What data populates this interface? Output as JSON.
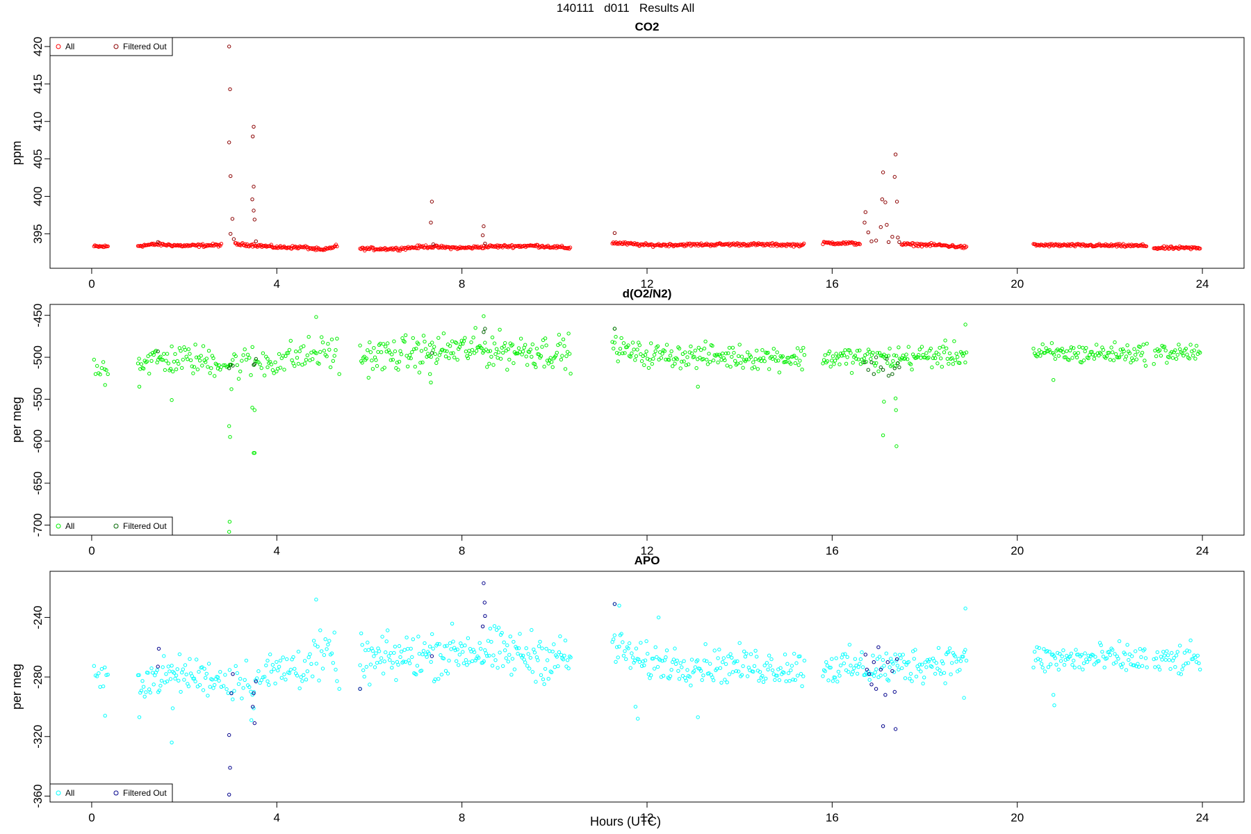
{
  "page_title": "140111   d011   Results All",
  "x_axis_label": "Hours (UTC)",
  "legend_labels": {
    "all": "All",
    "filtered": "Filtered Out"
  },
  "colors": {
    "co2_all": "#ff0000",
    "co2_filtered": "#8b0000",
    "o2n2_all": "#00ee00",
    "o2n2_filtered": "#006400",
    "apo_all": "#00ffff",
    "apo_filtered": "#00008b"
  },
  "chart_data": [
    {
      "type": "scatter",
      "title": "CO2",
      "xlabel": "Hours (UTC)",
      "ylabel": "ppm",
      "xlim": [
        -0.9,
        24.9
      ],
      "ylim": [
        390.4,
        421.2
      ],
      "x_ticks": [
        0,
        4,
        8,
        12,
        16,
        20,
        24
      ],
      "y_ticks": [
        395,
        400,
        405,
        410,
        415,
        420
      ],
      "legend": [
        "All",
        "Filtered Out"
      ],
      "legend_position": "top-left",
      "grid": false,
      "baseline_segments": [
        [
          [
            0.05,
            393.3
          ],
          [
            0.35,
            393.3
          ]
        ],
        [
          [
            1.0,
            393.4
          ],
          [
            1.4,
            393.6
          ],
          [
            2.0,
            393.4
          ],
          [
            2.8,
            393.5
          ]
        ],
        [
          [
            3.1,
            393.6
          ],
          [
            3.5,
            393.5
          ],
          [
            4.0,
            393.2
          ],
          [
            4.6,
            393.2
          ],
          [
            5.0,
            392.8
          ],
          [
            5.3,
            393.4
          ]
        ],
        [
          [
            5.8,
            393.0
          ],
          [
            6.6,
            393.0
          ],
          [
            7.2,
            393.3
          ],
          [
            8.0,
            393.1
          ],
          [
            8.6,
            393.3
          ],
          [
            9.6,
            393.4
          ],
          [
            10.35,
            393.1
          ]
        ],
        [
          [
            11.25,
            393.8
          ],
          [
            12.0,
            393.5
          ],
          [
            14.0,
            393.6
          ],
          [
            15.4,
            393.5
          ]
        ],
        [
          [
            15.8,
            393.8
          ],
          [
            16.6,
            393.7
          ]
        ],
        [
          [
            17.5,
            393.6
          ],
          [
            18.3,
            393.5
          ],
          [
            18.9,
            393.2
          ]
        ],
        [
          [
            20.35,
            393.5
          ],
          [
            22.8,
            393.4
          ]
        ],
        [
          [
            22.95,
            393.1
          ],
          [
            23.95,
            393.1
          ]
        ]
      ],
      "filtered_points": [
        [
          1.43,
          393.9
        ],
        [
          2.97,
          420.0
        ],
        [
          2.99,
          414.3
        ],
        [
          2.97,
          407.2
        ],
        [
          3.0,
          402.7
        ],
        [
          3.04,
          397.0
        ],
        [
          3.0,
          395.0
        ],
        [
          3.07,
          394.3
        ],
        [
          3.5,
          409.3
        ],
        [
          3.48,
          408.0
        ],
        [
          3.5,
          401.3
        ],
        [
          3.47,
          399.6
        ],
        [
          3.5,
          398.1
        ],
        [
          3.52,
          396.9
        ],
        [
          3.55,
          394.0
        ],
        [
          7.35,
          399.3
        ],
        [
          7.33,
          396.5
        ],
        [
          7.38,
          393.6
        ],
        [
          8.47,
          396.0
        ],
        [
          8.45,
          394.8
        ],
        [
          8.5,
          393.7
        ],
        [
          11.3,
          395.1
        ],
        [
          16.7,
          396.5
        ],
        [
          16.72,
          397.9
        ],
        [
          16.78,
          395.2
        ],
        [
          16.85,
          394.0
        ],
        [
          16.95,
          394.1
        ],
        [
          17.08,
          399.6
        ],
        [
          17.1,
          403.2
        ],
        [
          17.15,
          399.2
        ],
        [
          17.18,
          396.2
        ],
        [
          17.05,
          395.9
        ],
        [
          17.22,
          393.9
        ],
        [
          17.3,
          394.6
        ],
        [
          17.35,
          402.6
        ],
        [
          17.37,
          405.6
        ],
        [
          17.4,
          399.3
        ],
        [
          17.42,
          394.5
        ],
        [
          17.45,
          393.9
        ]
      ]
    },
    {
      "type": "scatter",
      "title": "d(O2/N2)",
      "xlabel": "Hours (UTC)",
      "ylabel": "per meg",
      "xlim": [
        -0.9,
        24.9
      ],
      "ylim": [
        -712,
        -437
      ],
      "x_ticks": [
        0,
        4,
        8,
        12,
        16,
        20,
        24
      ],
      "y_ticks": [
        -700,
        -650,
        -600,
        -550,
        -500,
        -450
      ],
      "legend": [
        "All",
        "Filtered Out"
      ],
      "legend_position": "bottom-left",
      "grid": false,
      "segments": [
        {
          "x0": 0.05,
          "x1": 0.35,
          "n": 10,
          "mean": [
            [
              0,
              -511
            ],
            [
              1,
              -511
            ]
          ],
          "spread": 6
        },
        {
          "x0": 1.0,
          "x1": 2.8,
          "n": 75,
          "mean": [
            [
              0,
              -505
            ],
            [
              0.5,
              -502
            ],
            [
              1,
              -505
            ]
          ],
          "spread": 9
        },
        {
          "x0": 2.85,
          "x1": 3.8,
          "n": 30,
          "mean": [
            [
              0,
              -508
            ],
            [
              1,
              -505
            ]
          ],
          "spread": 10
        },
        {
          "x0": 3.8,
          "x1": 5.3,
          "n": 55,
          "mean": [
            [
              0,
              -505
            ],
            [
              0.6,
              -497
            ],
            [
              1,
              -492
            ]
          ],
          "spread": 10
        },
        {
          "x0": 5.8,
          "x1": 10.35,
          "n": 200,
          "mean": [
            [
              0,
              -500
            ],
            [
              0.5,
              -490
            ],
            [
              1,
              -494
            ]
          ],
          "spread": 10
        },
        {
          "x0": 11.25,
          "x1": 15.4,
          "n": 170,
          "mean": [
            [
              0,
              -488
            ],
            [
              0.15,
              -497
            ],
            [
              1,
              -501
            ]
          ],
          "spread": 7
        },
        {
          "x0": 15.8,
          "x1": 18.9,
          "n": 130,
          "mean": [
            [
              0,
              -500
            ],
            [
              0.4,
              -502
            ],
            [
              1,
              -496
            ]
          ],
          "spread": 7
        },
        {
          "x0": 20.35,
          "x1": 22.8,
          "n": 100,
          "mean": [
            [
              0,
              -496
            ],
            [
              1,
              -495
            ]
          ],
          "spread": 6
        },
        {
          "x0": 22.95,
          "x1": 23.95,
          "n": 40,
          "mean": [
            [
              0,
              -495
            ],
            [
              1,
              -494
            ]
          ],
          "spread": 6
        }
      ],
      "outliers": [
        [
          0.29,
          -533
        ],
        [
          1.03,
          -535
        ],
        [
          1.73,
          -551
        ],
        [
          2.97,
          -582
        ],
        [
          2.99,
          -595
        ],
        [
          2.98,
          -696
        ],
        [
          2.97,
          -708
        ],
        [
          3.02,
          -538
        ],
        [
          3.47,
          -560
        ],
        [
          3.52,
          -563
        ],
        [
          3.5,
          -614
        ],
        [
          3.52,
          -614
        ],
        [
          4.85,
          -452
        ],
        [
          5.35,
          -520
        ],
        [
          7.33,
          -530
        ],
        [
          7.31,
          -520
        ],
        [
          8.47,
          -451
        ],
        [
          11.3,
          -466
        ],
        [
          13.1,
          -535
        ],
        [
          17.12,
          -553
        ],
        [
          17.1,
          -593
        ],
        [
          17.37,
          -549
        ],
        [
          17.38,
          -563
        ],
        [
          17.39,
          -606
        ],
        [
          18.88,
          -461
        ],
        [
          20.78,
          -527
        ]
      ],
      "filtered_points": [
        [
          1.43,
          -493
        ],
        [
          2.97,
          -513
        ],
        [
          3.0,
          -509
        ],
        [
          3.05,
          -510
        ],
        [
          3.5,
          -509
        ],
        [
          3.52,
          -508
        ],
        [
          3.55,
          -502
        ],
        [
          7.35,
          -495
        ],
        [
          8.47,
          -470
        ],
        [
          8.5,
          -466
        ],
        [
          11.3,
          -466
        ],
        [
          16.7,
          -506
        ],
        [
          16.78,
          -515
        ],
        [
          16.85,
          -506
        ],
        [
          16.9,
          -520
        ],
        [
          16.95,
          -500
        ],
        [
          17.05,
          -512
        ],
        [
          17.1,
          -515
        ],
        [
          17.18,
          -502
        ],
        [
          17.22,
          -522
        ],
        [
          17.3,
          -520
        ],
        [
          17.35,
          -513
        ],
        [
          17.42,
          -507
        ],
        [
          17.45,
          -512
        ]
      ]
    },
    {
      "type": "scatter",
      "title": "APO",
      "xlabel": "Hours (UTC)",
      "ylabel": "per meg",
      "xlim": [
        -0.9,
        24.9
      ],
      "ylim": [
        -364,
        -209
      ],
      "x_ticks": [
        0,
        4,
        8,
        12,
        16,
        20,
        24
      ],
      "y_ticks": [
        -360,
        -320,
        -280,
        -240
      ],
      "legend": [
        "All",
        "Filtered Out"
      ],
      "legend_position": "bottom-left",
      "grid": false,
      "segments": [
        {
          "x0": 0.05,
          "x1": 0.35,
          "n": 10,
          "mean": [
            [
              0,
              -282
            ],
            [
              1,
              -282
            ]
          ],
          "spread": 5
        },
        {
          "x0": 1.0,
          "x1": 2.8,
          "n": 75,
          "mean": [
            [
              0,
              -282
            ],
            [
              0.5,
              -278
            ],
            [
              1,
              -281
            ]
          ],
          "spread": 6
        },
        {
          "x0": 2.85,
          "x1": 3.8,
          "n": 30,
          "mean": [
            [
              0,
              -282
            ],
            [
              1,
              -280
            ]
          ],
          "spread": 7
        },
        {
          "x0": 3.8,
          "x1": 5.3,
          "n": 55,
          "mean": [
            [
              0,
              -278
            ],
            [
              0.6,
              -270
            ],
            [
              1,
              -265
            ]
          ],
          "spread": 8
        },
        {
          "x0": 5.8,
          "x1": 10.35,
          "n": 200,
          "mean": [
            [
              0,
              -270
            ],
            [
              0.5,
              -262
            ],
            [
              1,
              -268
            ]
          ],
          "spread": 8
        },
        {
          "x0": 11.25,
          "x1": 15.4,
          "n": 170,
          "mean": [
            [
              0,
              -258
            ],
            [
              0.15,
              -270
            ],
            [
              1,
              -274
            ]
          ],
          "spread": 6
        },
        {
          "x0": 15.8,
          "x1": 18.9,
          "n": 130,
          "mean": [
            [
              0,
              -273
            ],
            [
              0.4,
              -274
            ],
            [
              1,
              -268
            ]
          ],
          "spread": 6
        },
        {
          "x0": 20.35,
          "x1": 22.8,
          "n": 100,
          "mean": [
            [
              0,
              -268
            ],
            [
              1,
              -268
            ]
          ],
          "spread": 5
        },
        {
          "x0": 22.95,
          "x1": 23.95,
          "n": 40,
          "mean": [
            [
              0,
              -270
            ],
            [
              1,
              -268
            ]
          ],
          "spread": 5
        }
      ],
      "outliers": [
        [
          0.29,
          -306
        ],
        [
          1.03,
          -307
        ],
        [
          1.73,
          -324
        ],
        [
          1.75,
          -301
        ],
        [
          3.5,
          -301
        ],
        [
          3.45,
          -309
        ],
        [
          4.85,
          -228
        ],
        [
          5.35,
          -288
        ],
        [
          5.8,
          -288
        ],
        [
          11.3,
          -231
        ],
        [
          11.4,
          -232
        ],
        [
          11.75,
          -300
        ],
        [
          11.8,
          -308
        ],
        [
          12.25,
          -240
        ],
        [
          13.1,
          -307
        ],
        [
          18.88,
          -234
        ],
        [
          18.85,
          -294
        ],
        [
          20.78,
          -292
        ],
        [
          20.8,
          -299
        ]
      ],
      "filtered_points": [
        [
          1.43,
          -273
        ],
        [
          1.45,
          -261
        ],
        [
          2.97,
          -319
        ],
        [
          2.99,
          -341
        ],
        [
          2.97,
          -359
        ],
        [
          3.02,
          -291
        ],
        [
          3.05,
          -278
        ],
        [
          3.48,
          -300
        ],
        [
          3.52,
          -311
        ],
        [
          3.5,
          -291
        ],
        [
          3.55,
          -283
        ],
        [
          7.35,
          -266
        ],
        [
          8.47,
          -217
        ],
        [
          8.49,
          -230
        ],
        [
          8.5,
          -239
        ],
        [
          8.45,
          -246
        ],
        [
          5.8,
          -288
        ],
        [
          11.3,
          -231
        ],
        [
          16.75,
          -275
        ],
        [
          16.8,
          -278
        ],
        [
          16.85,
          -285
        ],
        [
          16.9,
          -270
        ],
        [
          16.95,
          -288
        ],
        [
          17.0,
          -260
        ],
        [
          17.05,
          -275
        ],
        [
          17.1,
          -313
        ],
        [
          17.15,
          -292
        ],
        [
          17.2,
          -270
        ],
        [
          17.3,
          -276
        ],
        [
          17.35,
          -290
        ],
        [
          17.37,
          -315
        ],
        [
          17.4,
          -268
        ],
        [
          16.72,
          -265
        ]
      ]
    }
  ]
}
